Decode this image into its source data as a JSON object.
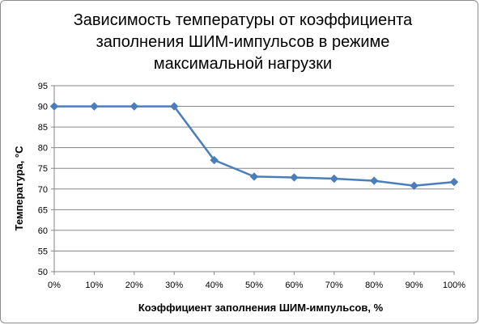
{
  "chart_data": {
    "type": "line",
    "title_lines": [
      "Зависимость температуры  от коэффициента",
      "заполнения ШИМ-импульсов в режиме",
      "максимальной нагрузки"
    ],
    "xlabel": "Коэффициент заполнения ШИМ-импульсов, %",
    "ylabel": "Температура, °C",
    "categories": [
      "0%",
      "10%",
      "20%",
      "30%",
      "40%",
      "50%",
      "60%",
      "70%",
      "80%",
      "90%",
      "100%"
    ],
    "series": [
      {
        "values": [
          90,
          90,
          90,
          90,
          77,
          73,
          72.8,
          72.5,
          72,
          70.8,
          71.7
        ]
      }
    ],
    "ylim": [
      50,
      95
    ],
    "yticks": [
      50,
      55,
      60,
      65,
      70,
      75,
      80,
      85,
      90,
      95
    ],
    "grid": true,
    "legend": "none",
    "colors": {
      "line": "#4a7ebb",
      "grid": "#868686",
      "axis": "#868686"
    }
  }
}
